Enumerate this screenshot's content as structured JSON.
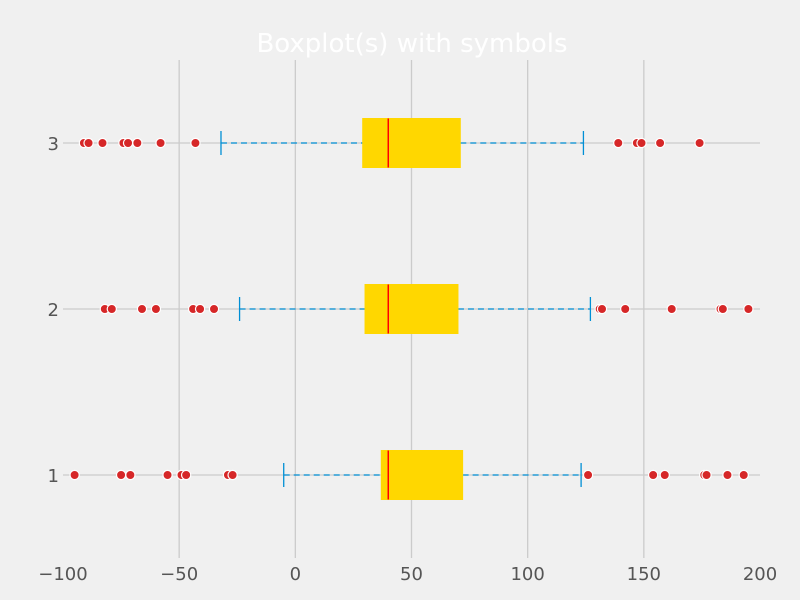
{
  "chart_data": {
    "type": "boxplot",
    "orientation": "horizontal",
    "title": "Boxplot(s) with symbols",
    "xlabel": "",
    "ylabel": "",
    "xlim": [
      -100,
      200
    ],
    "ylim": [
      0.5,
      3.5
    ],
    "x_ticks": [
      -100,
      -50,
      0,
      50,
      100,
      150,
      200
    ],
    "y_ticks": [
      1,
      2,
      3
    ],
    "grid": "x-lines",
    "colors": {
      "background": "#f0f0f0",
      "grid": "#cbcbcb",
      "box_fill": "#ffd700",
      "median": "#ff0000",
      "whisker": "#008fd5",
      "flier": "#d62728",
      "title": "#ffffff",
      "tick_label": "#555555"
    },
    "boxes": [
      {
        "category": "1",
        "whisker_low": -5,
        "q1": 37,
        "median": 40,
        "q3": 72,
        "whisker_high": 123,
        "fliers": [
          -95,
          -75,
          -71,
          -55,
          -49,
          -47,
          -29,
          -27,
          126,
          154,
          159,
          176,
          177,
          186,
          193
        ]
      },
      {
        "category": "2",
        "whisker_low": -24,
        "q1": 30,
        "median": 40,
        "q3": 70,
        "whisker_high": 127,
        "fliers": [
          -82,
          -79,
          -66,
          -60,
          -44,
          -41,
          -35,
          131,
          132,
          142,
          162,
          183,
          184,
          195
        ]
      },
      {
        "category": "3",
        "whisker_low": -32,
        "q1": 29,
        "median": 40,
        "q3": 71,
        "whisker_high": 124,
        "fliers": [
          -91,
          -89,
          -83,
          -74,
          -72,
          -68,
          -58,
          -43,
          139,
          147,
          149,
          157,
          174
        ]
      }
    ]
  }
}
